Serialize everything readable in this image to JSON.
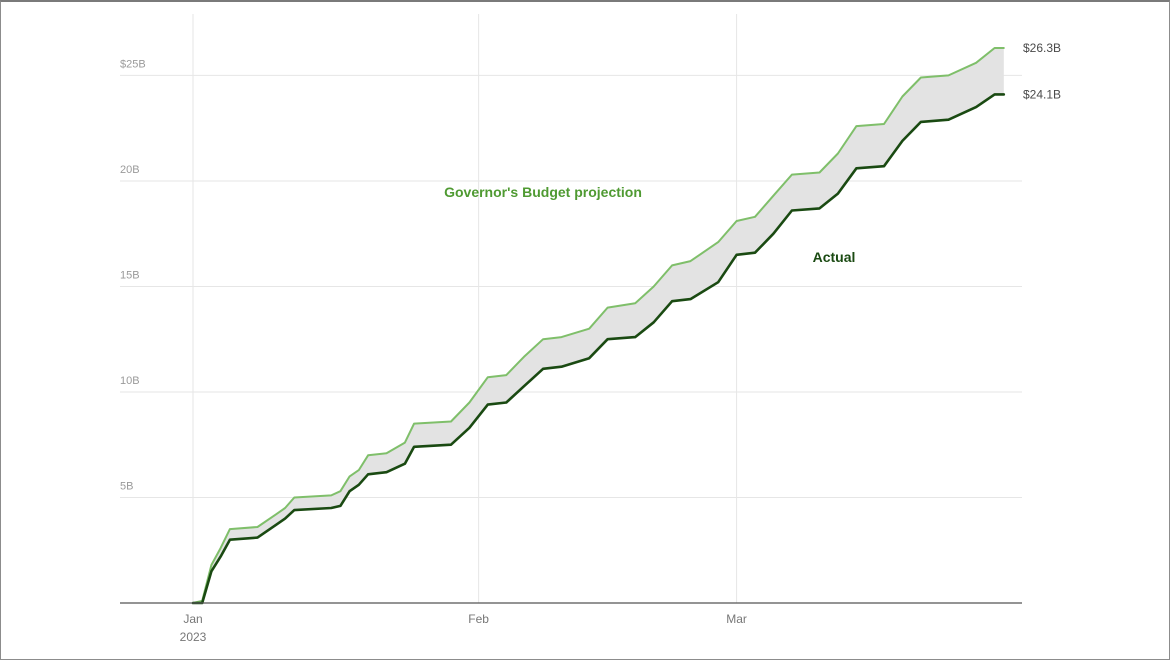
{
  "chart_data": {
    "type": "area",
    "title": "",
    "xlabel": "",
    "ylabel": "",
    "ylim": [
      0,
      26.3
    ],
    "y_ticks": [
      {
        "value": 5,
        "label": "5B"
      },
      {
        "value": 10,
        "label": "10B"
      },
      {
        "value": 15,
        "label": "15B"
      },
      {
        "value": 20,
        "label": "20B"
      },
      {
        "value": 25,
        "label": "$25B"
      }
    ],
    "x_ticks": [
      {
        "date": "2023-01-01",
        "label": "Jan",
        "sublabel": "2023"
      },
      {
        "date": "2023-02-01",
        "label": "Feb",
        "sublabel": ""
      },
      {
        "date": "2023-03-01",
        "label": "Mar",
        "sublabel": ""
      }
    ],
    "x_range": [
      "2023-01-01",
      "2023-03-31"
    ],
    "grid": true,
    "band_fill": "#e3e3e3",
    "series": [
      {
        "name": "Governor's Budget projection",
        "color": "#7fbf6a",
        "end_label": "$26.3B",
        "points": [
          [
            "2023-01-01",
            0.0
          ],
          [
            "2023-01-02",
            0.1
          ],
          [
            "2023-01-03",
            1.8
          ],
          [
            "2023-01-04",
            2.6
          ],
          [
            "2023-01-05",
            3.5
          ],
          [
            "2023-01-08",
            3.6
          ],
          [
            "2023-01-10",
            4.2
          ],
          [
            "2023-01-11",
            4.5
          ],
          [
            "2023-01-12",
            5.0
          ],
          [
            "2023-01-16",
            5.1
          ],
          [
            "2023-01-17",
            5.3
          ],
          [
            "2023-01-18",
            6.0
          ],
          [
            "2023-01-19",
            6.3
          ],
          [
            "2023-01-20",
            7.0
          ],
          [
            "2023-01-22",
            7.1
          ],
          [
            "2023-01-24",
            7.6
          ],
          [
            "2023-01-25",
            8.5
          ],
          [
            "2023-01-29",
            8.6
          ],
          [
            "2023-01-31",
            9.5
          ],
          [
            "2023-02-02",
            10.7
          ],
          [
            "2023-02-04",
            10.8
          ],
          [
            "2023-02-06",
            11.7
          ],
          [
            "2023-02-08",
            12.5
          ],
          [
            "2023-02-10",
            12.6
          ],
          [
            "2023-02-13",
            13.0
          ],
          [
            "2023-02-15",
            14.0
          ],
          [
            "2023-02-18",
            14.2
          ],
          [
            "2023-02-20",
            15.0
          ],
          [
            "2023-02-22",
            16.0
          ],
          [
            "2023-02-24",
            16.2
          ],
          [
            "2023-02-27",
            17.1
          ],
          [
            "2023-03-01",
            18.1
          ],
          [
            "2023-03-03",
            18.3
          ],
          [
            "2023-03-05",
            19.3
          ],
          [
            "2023-03-07",
            20.3
          ],
          [
            "2023-03-10",
            20.4
          ],
          [
            "2023-03-12",
            21.3
          ],
          [
            "2023-03-14",
            22.6
          ],
          [
            "2023-03-17",
            22.7
          ],
          [
            "2023-03-19",
            24.0
          ],
          [
            "2023-03-21",
            24.9
          ],
          [
            "2023-03-24",
            25.0
          ],
          [
            "2023-03-27",
            25.6
          ],
          [
            "2023-03-29",
            26.3
          ],
          [
            "2023-03-30",
            26.3
          ]
        ]
      },
      {
        "name": "Actual",
        "color": "#1a4a12",
        "end_label": "$24.1B",
        "points": [
          [
            "2023-01-01",
            0.0
          ],
          [
            "2023-01-02",
            0.0
          ],
          [
            "2023-01-03",
            1.5
          ],
          [
            "2023-01-04",
            2.2
          ],
          [
            "2023-01-05",
            3.0
          ],
          [
            "2023-01-08",
            3.1
          ],
          [
            "2023-01-10",
            3.7
          ],
          [
            "2023-01-11",
            4.0
          ],
          [
            "2023-01-12",
            4.4
          ],
          [
            "2023-01-16",
            4.5
          ],
          [
            "2023-01-17",
            4.6
          ],
          [
            "2023-01-18",
            5.3
          ],
          [
            "2023-01-19",
            5.6
          ],
          [
            "2023-01-20",
            6.1
          ],
          [
            "2023-01-22",
            6.2
          ],
          [
            "2023-01-24",
            6.6
          ],
          [
            "2023-01-25",
            7.4
          ],
          [
            "2023-01-29",
            7.5
          ],
          [
            "2023-01-31",
            8.3
          ],
          [
            "2023-02-02",
            9.4
          ],
          [
            "2023-02-04",
            9.5
          ],
          [
            "2023-02-06",
            10.3
          ],
          [
            "2023-02-08",
            11.1
          ],
          [
            "2023-02-10",
            11.2
          ],
          [
            "2023-02-13",
            11.6
          ],
          [
            "2023-02-15",
            12.5
          ],
          [
            "2023-02-18",
            12.6
          ],
          [
            "2023-02-20",
            13.3
          ],
          [
            "2023-02-22",
            14.3
          ],
          [
            "2023-02-24",
            14.4
          ],
          [
            "2023-02-27",
            15.2
          ],
          [
            "2023-03-01",
            16.5
          ],
          [
            "2023-03-03",
            16.6
          ],
          [
            "2023-03-05",
            17.5
          ],
          [
            "2023-03-07",
            18.6
          ],
          [
            "2023-03-10",
            18.7
          ],
          [
            "2023-03-12",
            19.4
          ],
          [
            "2023-03-14",
            20.6
          ],
          [
            "2023-03-17",
            20.7
          ],
          [
            "2023-03-19",
            21.9
          ],
          [
            "2023-03-21",
            22.8
          ],
          [
            "2023-03-24",
            22.9
          ],
          [
            "2023-03-27",
            23.5
          ],
          [
            "2023-03-29",
            24.1
          ],
          [
            "2023-03-30",
            24.1
          ]
        ]
      }
    ],
    "annotations": [
      {
        "text": "Governor's Budget projection",
        "color": "#4f9a32"
      },
      {
        "text": "Actual",
        "color": "#1a4a12"
      }
    ]
  }
}
